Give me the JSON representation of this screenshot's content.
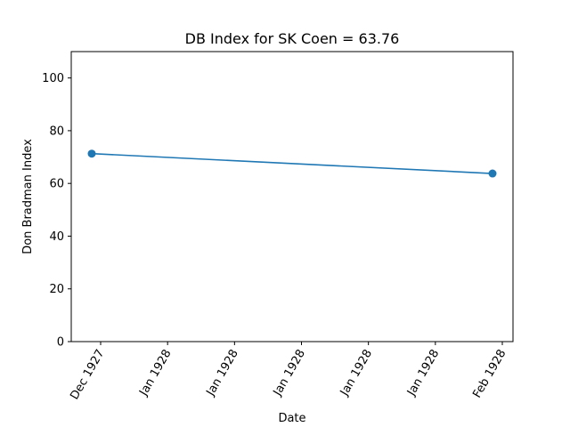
{
  "chart_data": {
    "type": "line",
    "title": "DB Index for SK Coen = 63.76",
    "xlabel": "Date",
    "ylabel": "Don Bradman Index",
    "ylim": [
      0,
      110
    ],
    "y_ticks": [
      0,
      20,
      40,
      60,
      80,
      100
    ],
    "x_ticks": [
      "Dec 1927",
      "Jan 1928",
      "Jan 1928",
      "Jan 1928",
      "Jan 1928",
      "Jan 1928",
      "Feb 1928"
    ],
    "series": [
      {
        "color": "#1f77b4",
        "points": [
          {
            "date": "Dec 1927",
            "y": 71.3
          },
          {
            "date": "Feb 1928",
            "y": 63.76
          }
        ]
      }
    ],
    "grid": false,
    "legend": "none"
  }
}
